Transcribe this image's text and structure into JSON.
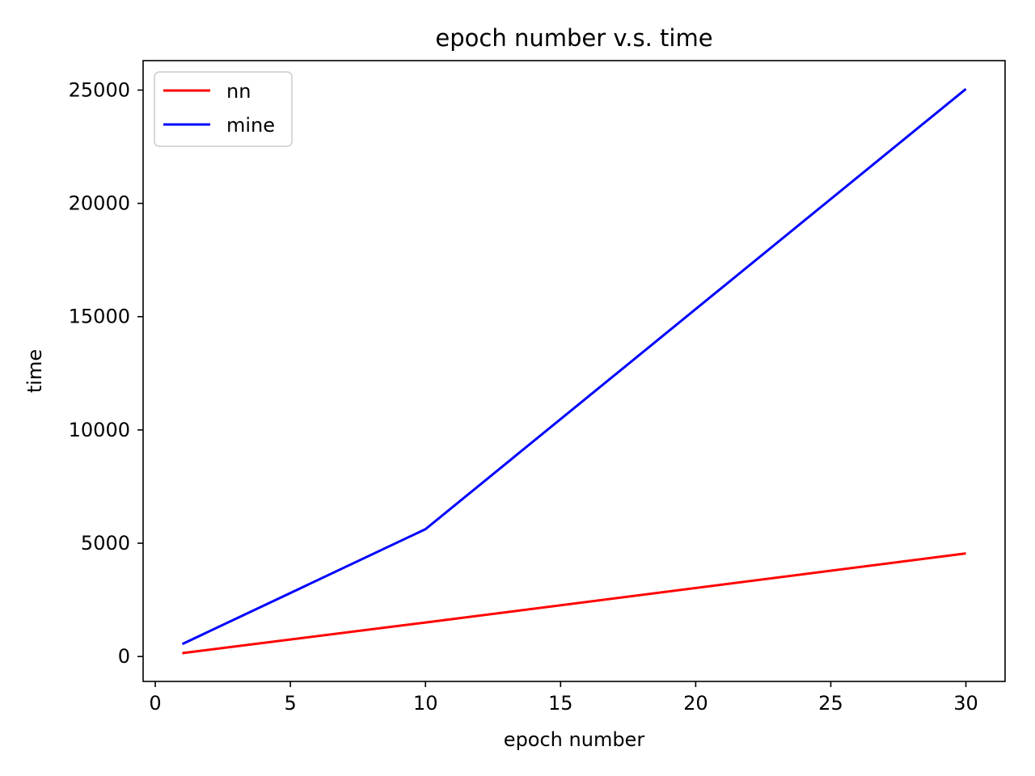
{
  "chart_data": {
    "type": "line",
    "title": "epoch number v.s. time",
    "xlabel": "epoch number",
    "ylabel": "time",
    "xlim": [
      -0.45,
      31.45
    ],
    "ylim": [
      -1100,
      26300
    ],
    "x_ticks": [
      0,
      5,
      10,
      15,
      20,
      25,
      30
    ],
    "y_ticks": [
      0,
      5000,
      10000,
      15000,
      20000,
      25000
    ],
    "grid": false,
    "legend_position": "upper left",
    "series": [
      {
        "name": "nn",
        "color": "#ff0000",
        "x": [
          1,
          10,
          30
        ],
        "y": [
          150,
          1500,
          4550
        ]
      },
      {
        "name": "mine",
        "color": "#0000ff",
        "x": [
          1,
          10,
          30
        ],
        "y": [
          550,
          5620,
          25050
        ]
      }
    ]
  }
}
